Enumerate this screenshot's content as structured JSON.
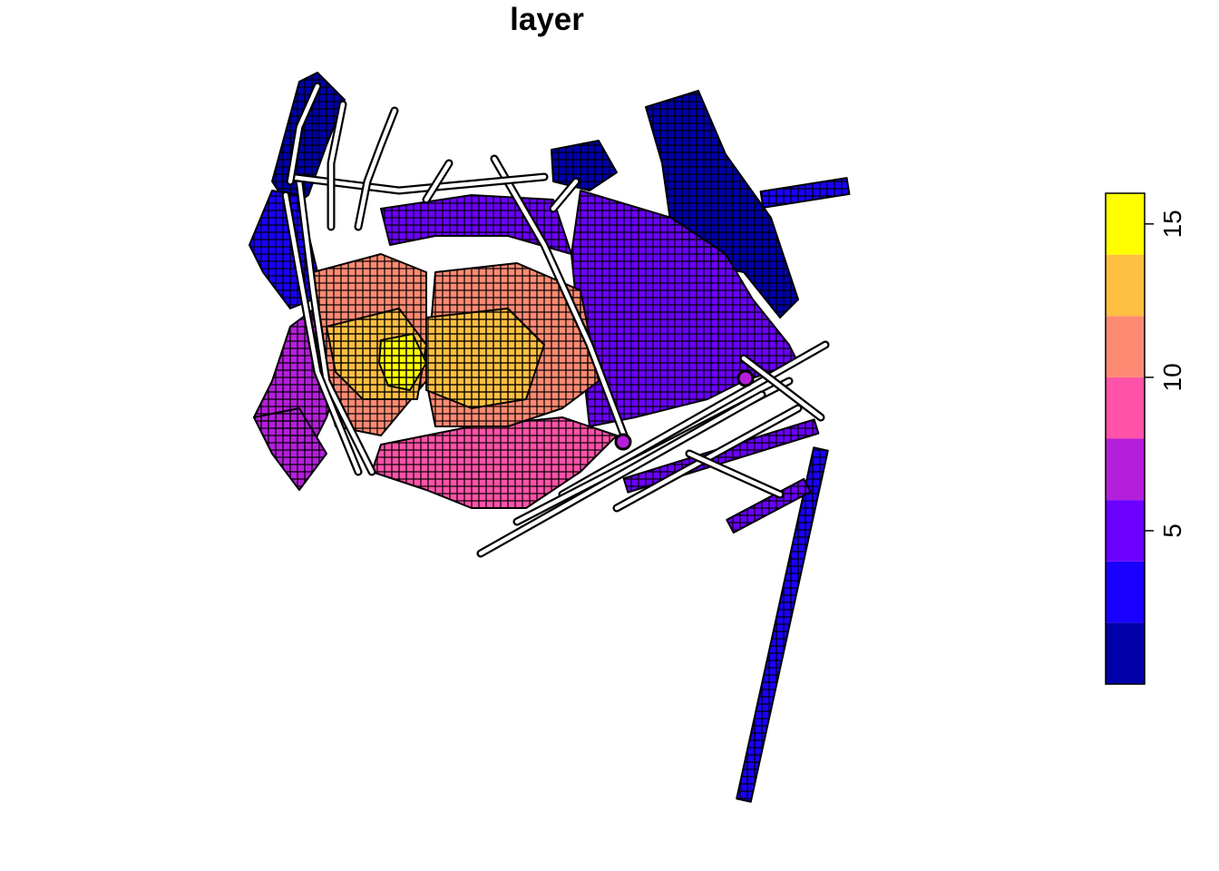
{
  "title": "layer",
  "legend": {
    "tick_labels": [
      "5",
      "10",
      "15"
    ],
    "tick_values": [
      5,
      10,
      15
    ],
    "range": [
      0,
      16
    ],
    "bins": [
      {
        "from": 0,
        "to": 2,
        "color": "#0000AA"
      },
      {
        "from": 2,
        "to": 4,
        "color": "#1A00FF"
      },
      {
        "from": 4,
        "to": 6,
        "color": "#6B00FF"
      },
      {
        "from": 6,
        "to": 8,
        "color": "#B51FDB"
      },
      {
        "from": 8,
        "to": 10,
        "color": "#FF52A8"
      },
      {
        "from": 10,
        "to": 12,
        "color": "#FF8A73"
      },
      {
        "from": 12,
        "to": 14,
        "color": "#FFBF40"
      },
      {
        "from": 14,
        "to": 16,
        "color": "#FFFF00"
      }
    ]
  },
  "colors": {
    "low": "#0000AA",
    "high": "#FFFF00",
    "cell_border": "#000000",
    "path_outline": "#000000",
    "path_fill": "#FFFFFF"
  }
}
